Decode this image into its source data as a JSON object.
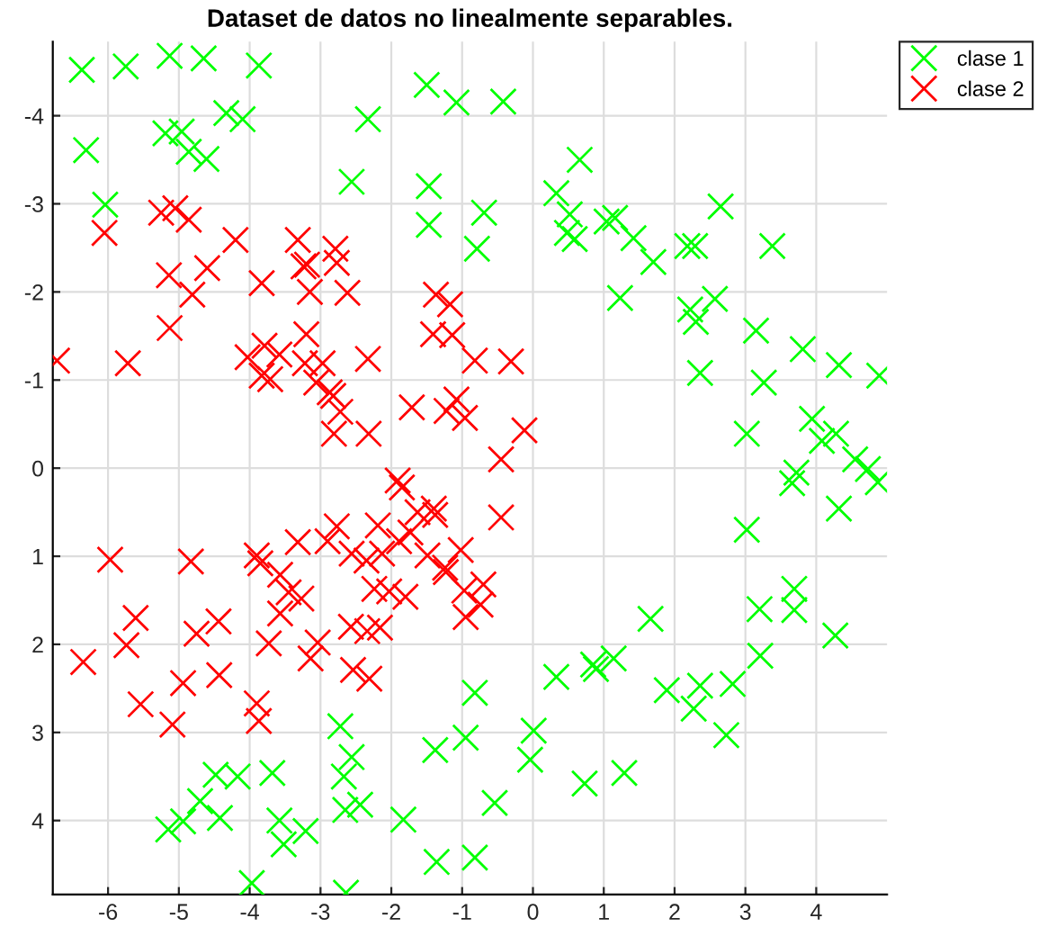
{
  "chart_data": {
    "type": "scatter",
    "title": "Dataset de datos no linealmente separables.",
    "xlim": [
      -6.78,
      5.0
    ],
    "ylim": [
      4.84,
      -4.84
    ],
    "xticks": [
      -6,
      -5,
      -4,
      -3,
      -2,
      -1,
      0,
      1,
      2,
      3,
      4
    ],
    "yticks": [
      -4,
      -3,
      -2,
      -1,
      0,
      1,
      2,
      3,
      4
    ],
    "grid": true,
    "legend": "top right",
    "marker": "cross",
    "series": [
      {
        "name": "clase 1",
        "color": "#00ff00",
        "x": [
          -6.37,
          -5.75,
          -5.13,
          -4.65,
          -3.87,
          -1.5,
          -1.08,
          -0.42,
          -6.31,
          -5.19,
          -4.96,
          -4.86,
          -4.61,
          -4.33,
          -4.1,
          -2.33,
          -6.04,
          -2.56,
          -1.47,
          -1.47,
          -0.69,
          -0.79,
          0.66,
          0.33,
          0.52,
          0.48,
          0.59,
          1.04,
          1.16,
          1.42,
          1.7,
          2.18,
          2.29,
          2.65,
          3.38,
          1.23,
          2.22,
          2.3,
          2.57,
          3.15,
          3.81,
          4.32,
          4.89,
          2.36,
          3.26,
          3.02,
          3.94,
          4.08,
          4.28,
          3.72,
          3.66,
          4.55,
          4.73,
          4.87,
          4.32,
          3.02,
          3.69,
          3.2,
          3.69,
          4.27,
          3.21,
          1.66,
          0.33,
          0.85,
          0.89,
          1.14,
          1.89,
          2.36,
          2.82,
          2.27,
          2.73,
          0.01,
          -0.04,
          0.73,
          1.29,
          -0.54,
          -2.72,
          -2.56,
          -2.67,
          -0.82,
          -0.95,
          -1.38,
          -4.48,
          -4.17,
          -3.68,
          -4.7,
          -4.94,
          -5.15,
          -4.42,
          -3.58,
          -3.52,
          -3.21,
          -2.65,
          -2.44,
          -1.83,
          -1.36,
          -0.82,
          -3.97,
          -2.64
        ],
        "values": [
          -4.52,
          -4.56,
          -4.68,
          -4.65,
          -4.57,
          -4.35,
          -4.15,
          -4.16,
          -3.61,
          -3.8,
          -3.82,
          -3.59,
          -3.51,
          -4.03,
          -3.96,
          -3.96,
          -2.99,
          -3.25,
          -3.2,
          -2.76,
          -2.9,
          -2.49,
          -3.5,
          -3.12,
          -2.88,
          -2.67,
          -2.6,
          -2.8,
          -2.84,
          -2.61,
          -2.34,
          -2.52,
          -2.52,
          -2.97,
          -2.52,
          -1.93,
          -1.8,
          -1.66,
          -1.92,
          -1.56,
          -1.35,
          -1.17,
          -1.05,
          -1.08,
          -0.97,
          -0.39,
          -0.56,
          -0.31,
          -0.39,
          0.05,
          0.17,
          -0.1,
          0.01,
          0.16,
          0.46,
          0.7,
          1.37,
          1.6,
          1.61,
          1.9,
          2.13,
          1.71,
          2.37,
          2.23,
          2.28,
          2.16,
          2.52,
          2.47,
          2.45,
          2.73,
          3.03,
          2.98,
          3.31,
          3.58,
          3.46,
          3.8,
          2.93,
          3.28,
          3.5,
          2.55,
          3.06,
          3.2,
          3.48,
          3.5,
          3.46,
          3.78,
          4.01,
          4.1,
          3.97,
          4.0,
          4.27,
          4.12,
          3.88,
          3.82,
          3.99,
          4.47,
          4.42,
          4.71,
          4.82
        ]
      },
      {
        "name": "clase 2",
        "color": "#ff0000",
        "x": [
          -6.72,
          -5.72,
          -6.05,
          -5.25,
          -5.05,
          -4.86,
          -4.2,
          -5.14,
          -4.81,
          -4.6,
          -5.13,
          -3.83,
          -3.32,
          -3.24,
          -3.19,
          -2.79,
          -2.77,
          -3.15,
          -2.62,
          -3.2,
          -4.03,
          -3.79,
          -3.58,
          -3.83,
          -3.71,
          -3.22,
          -2.97,
          -3.06,
          -2.87,
          -2.82,
          -2.72,
          -2.81,
          -2.33,
          -2.32,
          -1.37,
          -1.17,
          -1.41,
          -1.14,
          -0.82,
          -0.31,
          -1.71,
          -1.22,
          -1.08,
          -0.96,
          -0.45,
          -0.12,
          -0.45,
          -1.91,
          -1.85,
          -1.63,
          -1.4,
          -1.38,
          -1.73,
          -1.89,
          -2.19,
          -2.77,
          -2.9,
          -3.32,
          -2.56,
          -2.35,
          -2.13,
          -1.49,
          -1.02,
          -1.24,
          -1.23,
          -5.97,
          -4.83,
          -3.9,
          -3.85,
          -3.57,
          -3.45,
          -3.27,
          -3.57,
          -2.24,
          -2.03,
          -1.8,
          -0.97,
          -0.7,
          -0.74,
          -0.95,
          -2.57,
          -2.34,
          -2.16,
          -5.61,
          -5.74,
          -4.75,
          -4.44,
          -3.73,
          -3.04,
          -3.14,
          -6.35,
          -4.94,
          -4.43,
          -2.54,
          -2.31,
          -5.54,
          -3.9,
          -3.87,
          -5.09
        ],
        "values": [
          -1.22,
          -1.19,
          -2.67,
          -2.9,
          -2.95,
          -2.82,
          -2.59,
          -2.19,
          -1.97,
          -2.27,
          -1.59,
          -2.1,
          -2.59,
          -2.29,
          -2.31,
          -2.49,
          -2.33,
          -2.0,
          -1.99,
          -1.52,
          -1.26,
          -1.39,
          -1.29,
          -1.05,
          -1.01,
          -1.19,
          -1.19,
          -0.97,
          -0.86,
          -0.82,
          -0.64,
          -0.39,
          -1.24,
          -0.39,
          -1.97,
          -1.86,
          -1.52,
          -1.51,
          -1.22,
          -1.21,
          -0.69,
          -0.65,
          -0.78,
          -0.57,
          -0.1,
          -0.43,
          0.56,
          0.14,
          0.22,
          0.5,
          0.46,
          0.53,
          0.73,
          0.83,
          0.65,
          0.66,
          0.83,
          0.84,
          0.97,
          1.05,
          0.97,
          0.99,
          0.93,
          1.13,
          1.18,
          1.04,
          1.06,
          0.99,
          1.08,
          1.21,
          1.41,
          1.48,
          1.65,
          1.37,
          1.4,
          1.46,
          1.39,
          1.32,
          1.55,
          1.69,
          1.8,
          1.85,
          1.81,
          1.7,
          2.01,
          1.88,
          1.74,
          1.99,
          1.98,
          2.16,
          2.2,
          2.44,
          2.35,
          2.29,
          2.39,
          2.68,
          2.67,
          2.87,
          2.91
        ]
      }
    ]
  }
}
